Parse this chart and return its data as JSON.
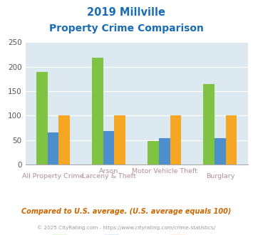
{
  "title_line1": "2019 Millville",
  "title_line2": "Property Crime Comparison",
  "categories_top": [
    "",
    "Arson",
    "Motor Vehicle Theft",
    ""
  ],
  "categories_bottom": [
    "All Property Crime",
    "Larceny & Theft",
    "",
    "Burglary"
  ],
  "series": {
    "Millville": [
      190,
      218,
      48,
      165
    ],
    "New Jersey": [
      65,
      68,
      54,
      54
    ],
    "National": [
      100,
      100,
      100,
      100
    ]
  },
  "colors": {
    "Millville": "#80c342",
    "New Jersey": "#4d8fcc",
    "National": "#f5a623"
  },
  "ylim": [
    0,
    250
  ],
  "yticks": [
    0,
    50,
    100,
    150,
    200,
    250
  ],
  "background_color": "#dce9f0",
  "title_color": "#1a6db5",
  "label_color": "#b09090",
  "footer_text": "Compared to U.S. average. (U.S. average equals 100)",
  "copyright_text": "© 2025 CityRating.com - https://www.cityrating.com/crime-statistics/",
  "footer_color": "#cc6600",
  "copyright_color": "#999999"
}
